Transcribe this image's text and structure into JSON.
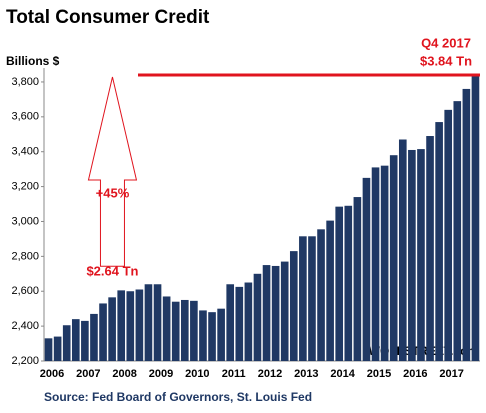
{
  "chart_data": {
    "type": "bar",
    "title": "Total Consumer Credit",
    "y_label": "Billions $",
    "categories": [
      "2006",
      null,
      null,
      null,
      "2007",
      null,
      null,
      null,
      "2008",
      null,
      null,
      null,
      "2009",
      null,
      null,
      null,
      "2010",
      null,
      null,
      null,
      "2011",
      null,
      null,
      null,
      "2012",
      null,
      null,
      null,
      "2013",
      null,
      null,
      null,
      "2014",
      null,
      null,
      null,
      "2015",
      null,
      null,
      null,
      "2016",
      null,
      null,
      null,
      "2017",
      null,
      null,
      null
    ],
    "values": [
      2330,
      2340,
      2405,
      2440,
      2430,
      2470,
      2530,
      2565,
      2605,
      2600,
      2610,
      2640,
      2640,
      2570,
      2540,
      2550,
      2545,
      2490,
      2480,
      2500,
      2640,
      2625,
      2650,
      2700,
      2750,
      2745,
      2770,
      2830,
      2915,
      2915,
      2955,
      3005,
      3085,
      3090,
      3140,
      3250,
      3310,
      3320,
      3380,
      3470,
      3410,
      3415,
      3490,
      3570,
      3640,
      3690,
      3760,
      3840
    ],
    "color": "#1f3864",
    "ylim": [
      2200,
      3880
    ],
    "yticks": [
      {
        "value": 2200,
        "label": "2,200"
      },
      {
        "value": 2400,
        "label": "2,400"
      },
      {
        "value": 2600,
        "label": "2,600"
      },
      {
        "value": 2800,
        "label": "2,800"
      },
      {
        "value": 3000,
        "label": "3,000"
      },
      {
        "value": 3200,
        "label": "3,200"
      },
      {
        "value": 3400,
        "label": "3,400"
      },
      {
        "value": 3600,
        "label": "3,600"
      },
      {
        "value": 3800,
        "label": "3,800"
      }
    ],
    "annotations": {
      "end_label_1": "Q4 2017",
      "end_label_2": "$3.84 Tn",
      "start_label": "$2.64 Tn",
      "change": "+45%",
      "source": "Source: Fed Board of Governors, St. Louis Fed",
      "brand": "WOLFSTREET.com"
    }
  }
}
